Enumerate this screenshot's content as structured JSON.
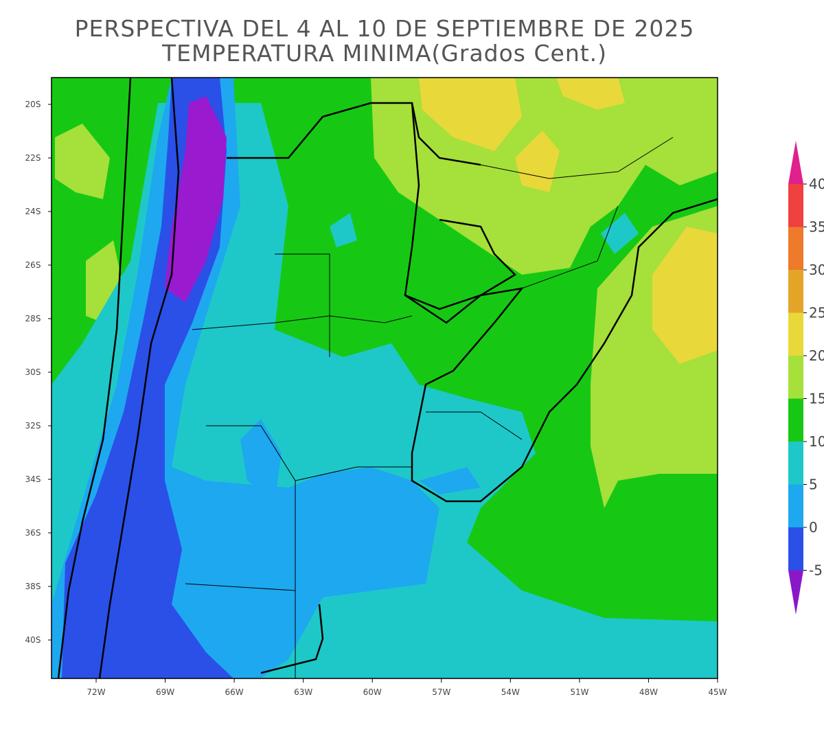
{
  "map": {
    "title": "PERSPECTIVA DEL 4 AL 10 DE SEPTIEMBRE DE 2025",
    "subtitle": "TEMPERATURA MINIMA(Grados Cent.)",
    "lat_labels": [
      "20S",
      "22S",
      "24S",
      "26S",
      "28S",
      "30S",
      "32S",
      "34S",
      "36S",
      "38S",
      "40S"
    ],
    "lon_labels": [
      "72W",
      "69W",
      "66W",
      "63W",
      "60W",
      "57W",
      "54W",
      "51W",
      "48W",
      "45W"
    ],
    "colorbar": {
      "labels": [
        "40",
        "35",
        "30",
        "25",
        "20",
        "15",
        "10",
        "5",
        "0",
        "-5"
      ],
      "colors": [
        "#e0208c",
        "#f04040",
        "#ee7a2a",
        "#e4a428",
        "#e8d83a",
        "#a6e03a",
        "#16c814",
        "#1ec8c8",
        "#1ea8f0",
        "#2a50e8",
        "#8a18c8"
      ]
    }
  }
}
